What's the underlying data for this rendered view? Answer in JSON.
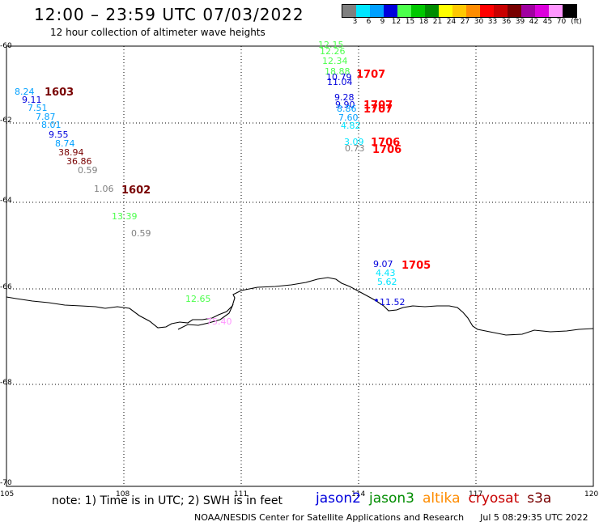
{
  "header": {
    "title": "12:00 – 23:59 UTC 07/03/2022",
    "subtitle": "12 hour collection of altimeter wave heights"
  },
  "color_scale": {
    "unit": "(ft)",
    "steps": [
      {
        "label": "3",
        "color": "#808080"
      },
      {
        "label": "6",
        "color": "#00e6ff"
      },
      {
        "label": "9",
        "color": "#00a0ff"
      },
      {
        "label": "12",
        "color": "#0000dc"
      },
      {
        "label": "15",
        "color": "#4cff4c"
      },
      {
        "label": "18",
        "color": "#00c800"
      },
      {
        "label": "21",
        "color": "#008c00"
      },
      {
        "label": "24",
        "color": "#ffff00"
      },
      {
        "label": "27",
        "color": "#ffc800"
      },
      {
        "label": "30",
        "color": "#ff8c00"
      },
      {
        "label": "33",
        "color": "#ff0000"
      },
      {
        "label": "36",
        "color": "#c80000"
      },
      {
        "label": "39",
        "color": "#780000"
      },
      {
        "label": "42",
        "color": "#a000a0"
      },
      {
        "label": "45",
        "color": "#dc00dc"
      },
      {
        "label": "70",
        "color": "#ff96ff"
      },
      {
        "label": "",
        "color": "#000000"
      }
    ]
  },
  "map": {
    "lon_range": [
      105,
      120
    ],
    "lat_range": [
      -70,
      -60
    ],
    "lon_ticks": [
      "105",
      "108",
      "111",
      "114",
      "117",
      "120"
    ],
    "lat_ticks": [
      "-60",
      "-62",
      "-64",
      "-66",
      "-68",
      "-70"
    ],
    "wave_heights": [
      {
        "v": "12.15",
        "c": "#4cff4c"
      },
      {
        "v": "12.26",
        "c": "#4cff4c"
      },
      {
        "v": "12.34",
        "c": "#4cff4c"
      },
      {
        "v": "18.88",
        "c": "#4cff4c"
      },
      {
        "v": "10.79",
        "c": "#0000dc"
      },
      {
        "v": "11.04",
        "c": "#0000dc"
      },
      {
        "v": "9.28",
        "c": "#0000dc"
      },
      {
        "v": "9.90",
        "c": "#0000dc"
      },
      {
        "v": "8.86",
        "c": "#00a0ff"
      },
      {
        "v": "7.60",
        "c": "#00a0ff"
      },
      {
        "v": "4.82",
        "c": "#00e6ff"
      },
      {
        "v": "3.09",
        "c": "#00e6ff"
      },
      {
        "v": "0.73",
        "c": "#808080"
      },
      {
        "v": "8.24",
        "c": "#00a0ff"
      },
      {
        "v": "9.11",
        "c": "#0000dc"
      },
      {
        "v": "7.51",
        "c": "#00a0ff"
      },
      {
        "v": "7.87",
        "c": "#00a0ff"
      },
      {
        "v": "8.01",
        "c": "#00a0ff"
      },
      {
        "v": "9.55",
        "c": "#0000dc"
      },
      {
        "v": "8.74",
        "c": "#00a0ff"
      },
      {
        "v": "38.94",
        "c": "#780000"
      },
      {
        "v": "36.86",
        "c": "#780000"
      },
      {
        "v": "0.59",
        "c": "#808080"
      },
      {
        "v": "1.06",
        "c": "#808080"
      },
      {
        "v": "13.39",
        "c": "#4cff4c"
      },
      {
        "v": "0.59",
        "c": "#808080"
      },
      {
        "v": "12.65",
        "c": "#4cff4c"
      },
      {
        "v": "75.40",
        "c": "#ff96ff"
      },
      {
        "v": "9.07",
        "c": "#0000dc"
      },
      {
        "v": "4.43",
        "c": "#00e6ff"
      },
      {
        "v": "5.62",
        "c": "#00e6ff"
      },
      {
        "v": "11.52",
        "c": "#0000dc"
      }
    ],
    "time_labels": [
      {
        "t": "1707",
        "c": "#ff0000"
      },
      {
        "t": "1707",
        "c": "#ff0000"
      },
      {
        "t": "1707",
        "c": "#ff0000"
      },
      {
        "t": "1706",
        "c": "#ff0000"
      },
      {
        "t": "1706",
        "c": "#ff0000"
      },
      {
        "t": "1603",
        "c": "#780000"
      },
      {
        "t": "1602",
        "c": "#780000"
      },
      {
        "t": "1705",
        "c": "#ff0000"
      }
    ]
  },
  "footer": {
    "note": "note:  1) Time is in UTC;  2) SWH is in feet",
    "satellites": [
      {
        "name": "jason2",
        "color": "#0000dc"
      },
      {
        "name": "jason3",
        "color": "#008c00"
      },
      {
        "name": "altika",
        "color": "#ff8c00"
      },
      {
        "name": "cryosat",
        "color": "#c80000"
      },
      {
        "name": "s3a",
        "color": "#780000"
      }
    ],
    "credit": "NOAA/NESDIS Center for Satellite Applications and Research",
    "generated": "Jul  5 08:29:35 UTC 2022"
  }
}
